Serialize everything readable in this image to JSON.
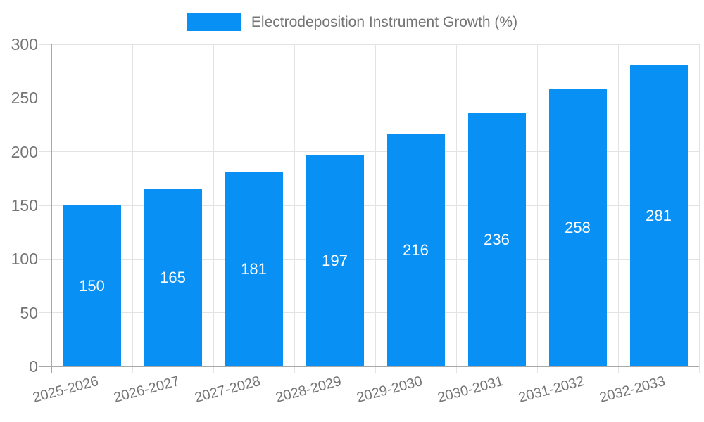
{
  "chart_data": {
    "type": "bar",
    "title": "",
    "legend": {
      "label": "Electrodeposition Instrument Growth (%)",
      "position": "top-center"
    },
    "categories": [
      "2025-2026",
      "2026-2027",
      "2027-2028",
      "2028-2029",
      "2029-2030",
      "2030-2031",
      "2031-2032",
      "2032-2033"
    ],
    "series": [
      {
        "name": "Electrodeposition Instrument Growth (%)",
        "values": [
          150,
          165,
          181,
          197,
          216,
          236,
          258,
          281
        ]
      }
    ],
    "value_labels_shown": true,
    "xlabel": "",
    "ylabel": "",
    "ylim": [
      0,
      300
    ],
    "yticks": [
      0,
      50,
      100,
      150,
      200,
      250,
      300
    ],
    "grid": true,
    "colors": {
      "bar": "#0890f5",
      "axis_text": "#757575",
      "gridline": "#e3e3e3",
      "axis_line": "#a8a8a8",
      "value_label": "#ffffff",
      "background": "#ffffff"
    }
  }
}
